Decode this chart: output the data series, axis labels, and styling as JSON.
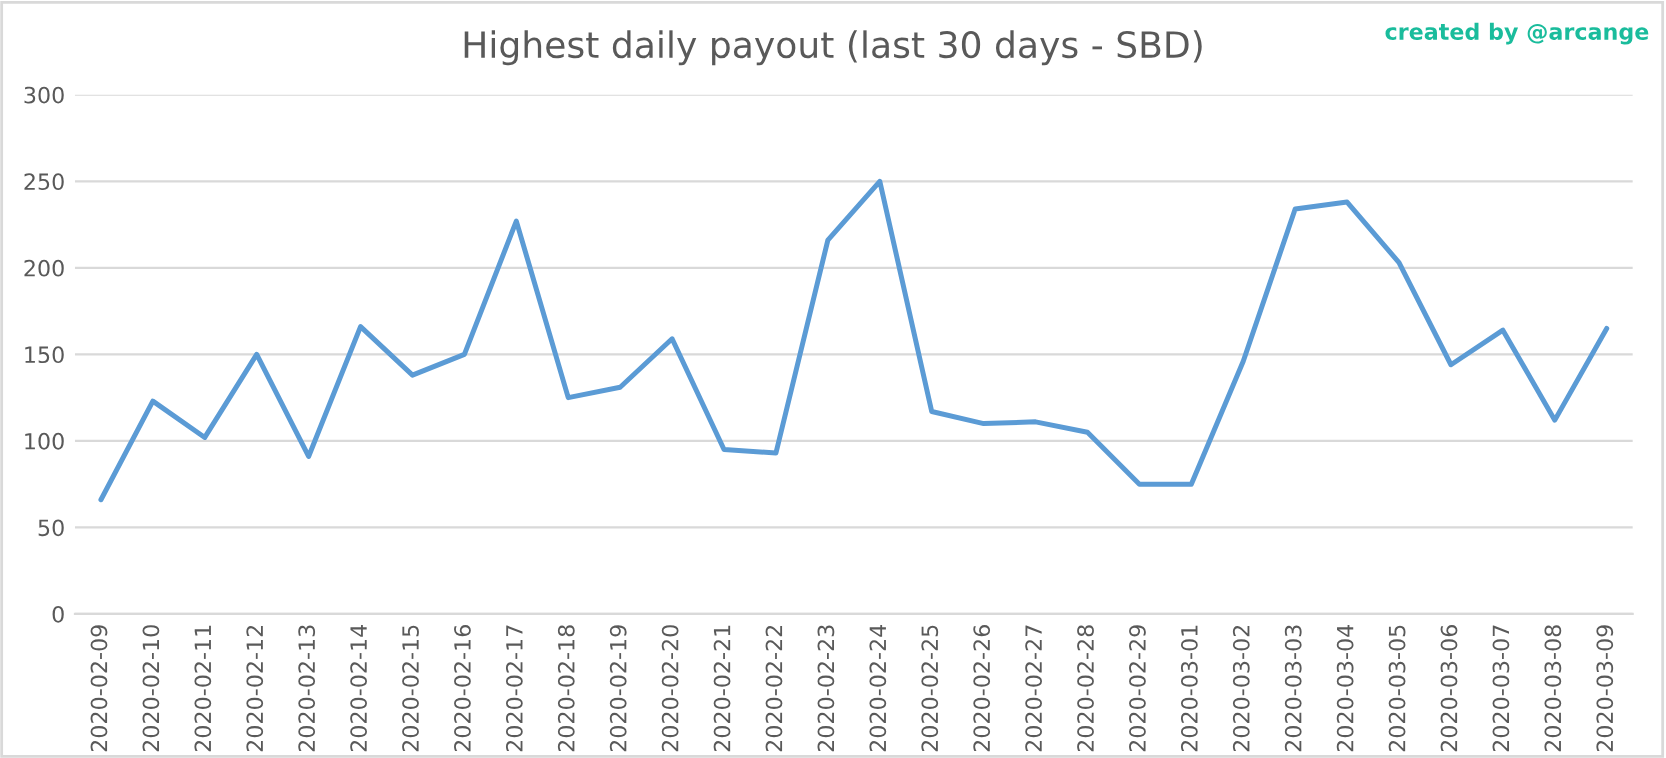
{
  "chart_data": {
    "type": "line",
    "title": "Highest daily payout (last 30 days - SBD)",
    "annotations": [
      "created by @arcange"
    ],
    "categories": [
      "2020-02-09",
      "2020-02-10",
      "2020-02-11",
      "2020-02-12",
      "2020-02-13",
      "2020-02-14",
      "2020-02-15",
      "2020-02-16",
      "2020-02-17",
      "2020-02-18",
      "2020-02-19",
      "2020-02-20",
      "2020-02-21",
      "2020-02-22",
      "2020-02-23",
      "2020-02-24",
      "2020-02-25",
      "2020-02-26",
      "2020-02-27",
      "2020-02-28",
      "2020-02-29",
      "2020-03-01",
      "2020-03-02",
      "2020-03-03",
      "2020-03-04",
      "2020-03-05",
      "2020-03-06",
      "2020-03-07",
      "2020-03-08",
      "2020-03-09"
    ],
    "series": [
      {
        "color": "#5b9bd5",
        "values": [
          66,
          123,
          102,
          150,
          91,
          166,
          138,
          150,
          227,
          125,
          131,
          159,
          95,
          93,
          216,
          250,
          117,
          110,
          111,
          105,
          75,
          75,
          146,
          234,
          238,
          203,
          144,
          164,
          112,
          165
        ]
      }
    ],
    "ylim": [
      0,
      300
    ],
    "yticks": [
      0,
      50,
      100,
      150,
      200,
      250,
      300
    ],
    "grid": "y",
    "legend": false,
    "marker": "none",
    "line_style": "solid"
  }
}
